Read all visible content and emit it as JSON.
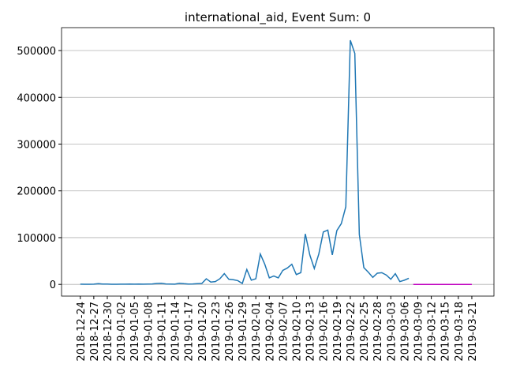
{
  "chart_data": {
    "type": "line",
    "title": "international_aid, Event Sum: 0",
    "xlim": [
      "2018-12-19T20:00",
      "2019-03-25T22:00"
    ],
    "ylim": [
      -25000,
      549000
    ],
    "yticks": [
      0,
      100000,
      200000,
      300000,
      400000,
      500000
    ],
    "xticks": [
      "2018-12-24",
      "2018-12-27",
      "2018-12-30",
      "2019-01-02",
      "2019-01-05",
      "2019-01-08",
      "2019-01-11",
      "2019-01-14",
      "2019-01-17",
      "2019-01-20",
      "2019-01-23",
      "2019-01-26",
      "2019-01-29",
      "2019-02-01",
      "2019-02-04",
      "2019-02-07",
      "2019-02-10",
      "2019-02-13",
      "2019-02-16",
      "2019-02-19",
      "2019-02-22",
      "2019-02-25",
      "2019-02-28",
      "2019-03-03",
      "2019-03-06",
      "2019-03-09",
      "2019-03-12",
      "2019-03-15",
      "2019-03-18",
      "2019-03-21"
    ],
    "grid": "y",
    "series": [
      {
        "color": "#1f77b4",
        "x": [
          "2018-12-24",
          "2018-12-25",
          "2018-12-26",
          "2018-12-27",
          "2018-12-28",
          "2018-12-29",
          "2018-12-30",
          "2018-12-31",
          "2019-01-01",
          "2019-01-02",
          "2019-01-03",
          "2019-01-04",
          "2019-01-05",
          "2019-01-06",
          "2019-01-07",
          "2019-01-08",
          "2019-01-09",
          "2019-01-10",
          "2019-01-11",
          "2019-01-12",
          "2019-01-13",
          "2019-01-14",
          "2019-01-15",
          "2019-01-16",
          "2019-01-17",
          "2019-01-18",
          "2019-01-19",
          "2019-01-20",
          "2019-01-21",
          "2019-01-22",
          "2019-01-23",
          "2019-01-24",
          "2019-01-25",
          "2019-01-26",
          "2019-01-27",
          "2019-01-28",
          "2019-01-29",
          "2019-01-30",
          "2019-01-31",
          "2019-02-01",
          "2019-02-02",
          "2019-02-03",
          "2019-02-04",
          "2019-02-05",
          "2019-02-06",
          "2019-02-07",
          "2019-02-08",
          "2019-02-09",
          "2019-02-10",
          "2019-02-11",
          "2019-02-12",
          "2019-02-13",
          "2019-02-14",
          "2019-02-15",
          "2019-02-16",
          "2019-02-17",
          "2019-02-18",
          "2019-02-19",
          "2019-02-20",
          "2019-02-21",
          "2019-02-22",
          "2019-02-23",
          "2019-02-24",
          "2019-02-25",
          "2019-02-26",
          "2019-02-27",
          "2019-02-28",
          "2019-03-01",
          "2019-03-02",
          "2019-03-03",
          "2019-03-04",
          "2019-03-05",
          "2019-03-06",
          "2019-03-07"
        ],
        "values": [
          500,
          300,
          400,
          600,
          1500,
          800,
          700,
          400,
          300,
          500,
          600,
          700,
          500,
          800,
          600,
          700,
          1000,
          2000,
          2500,
          1000,
          800,
          600,
          2500,
          1500,
          800,
          1000,
          1500,
          2000,
          12000,
          5000,
          6000,
          12000,
          23000,
          11000,
          10000,
          8000,
          2000,
          32000,
          9000,
          12000,
          65000,
          43000,
          14000,
          18000,
          14000,
          30000,
          35000,
          43000,
          21000,
          25000,
          108000,
          63000,
          34000,
          65000,
          112000,
          116000,
          63000,
          115000,
          130000,
          166000,
          522000,
          494000,
          107000,
          36000,
          26000,
          15000,
          24000,
          25000,
          20000,
          11000,
          23000,
          6000,
          9000,
          13000
        ]
      },
      {
        "color": "#bf00bf",
        "x": [
          "2019-03-08",
          "2019-03-09",
          "2019-03-10",
          "2019-03-11",
          "2019-03-12",
          "2019-03-13",
          "2019-03-14",
          "2019-03-15",
          "2019-03-16",
          "2019-03-17",
          "2019-03-18",
          "2019-03-19",
          "2019-03-20",
          "2019-03-21"
        ],
        "values": [
          0,
          0,
          0,
          0,
          0,
          0,
          0,
          0,
          0,
          0,
          0,
          0,
          0,
          0
        ]
      }
    ]
  }
}
